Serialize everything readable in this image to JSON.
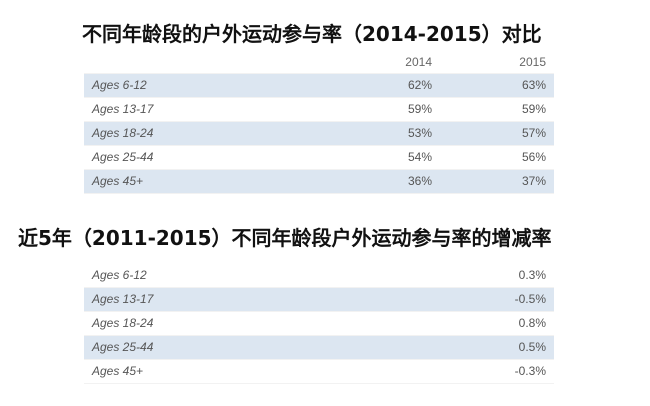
{
  "chart_data": [
    {
      "type": "table",
      "title": "不同年龄段的户外运动参与率（2014-2015）对比",
      "columns": [
        "",
        "2014",
        "2015"
      ],
      "rows": [
        {
          "label": "Ages 6-12",
          "values": [
            "62%",
            "63%"
          ]
        },
        {
          "label": "Ages 13-17",
          "values": [
            "59%",
            "59%"
          ]
        },
        {
          "label": "Ages 18-24",
          "values": [
            "53%",
            "57%"
          ]
        },
        {
          "label": "Ages 25-44",
          "values": [
            "54%",
            "56%"
          ]
        },
        {
          "label": "Ages 45+",
          "values": [
            "36%",
            "37%"
          ]
        }
      ]
    },
    {
      "type": "table",
      "title": "近5年（2011-2015）不同年龄段户外运动参与率的增减率",
      "columns": [
        "",
        ""
      ],
      "rows": [
        {
          "label": "Ages 6-12",
          "values": [
            "0.3%"
          ]
        },
        {
          "label": "Ages 13-17",
          "values": [
            "-0.5%"
          ]
        },
        {
          "label": "Ages 18-24",
          "values": [
            "0.8%"
          ]
        },
        {
          "label": "Ages 25-44",
          "values": [
            "0.5%"
          ]
        },
        {
          "label": "Ages 45+",
          "values": [
            "-0.3%"
          ]
        }
      ]
    }
  ],
  "colors": {
    "row_shade": "#dce6f1",
    "text": "#555555",
    "title": "#111111"
  }
}
